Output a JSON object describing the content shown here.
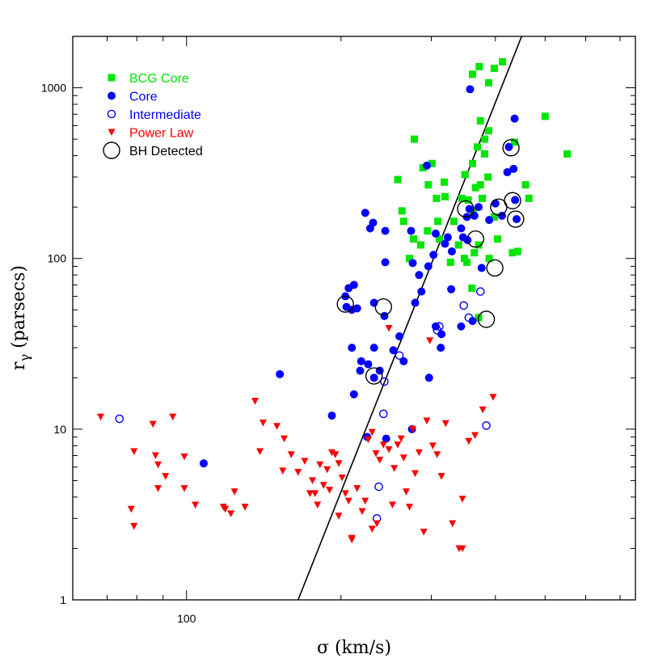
{
  "chart_data": {
    "type": "scatter",
    "x_scale": "log",
    "y_scale": "log",
    "xlim": [
      60,
      750
    ],
    "ylim": [
      1,
      2000
    ],
    "xlabel": "σ (km/s)",
    "ylabel": "r_γ (parsecs)",
    "x_ticks": [
      {
        "value": 100,
        "label": "100"
      }
    ],
    "y_ticks": [
      {
        "value": 1,
        "label": "1"
      },
      {
        "value": 10,
        "label": "10"
      },
      {
        "value": 100,
        "label": "100"
      },
      {
        "value": 1000,
        "label": "1000"
      }
    ],
    "legend_position": "top-left",
    "fit_line": {
      "x": [
        165,
        450
      ],
      "y": [
        1,
        2000
      ],
      "color": "#000000"
    },
    "series": [
      {
        "name": "BCG Core",
        "marker": "square",
        "color": "#00e600",
        "points": [
          [
            372,
            1330
          ],
          [
            413,
            1420
          ],
          [
            398,
            1300
          ],
          [
            388,
            1070
          ],
          [
            361,
            1200
          ],
          [
            436,
            480
          ],
          [
            387,
            300
          ],
          [
            374,
            270
          ],
          [
            404,
            130
          ],
          [
            442,
            110
          ],
          [
            432,
            108
          ],
          [
            458,
            270
          ],
          [
            465,
            225
          ],
          [
            500,
            680
          ],
          [
            552,
            410
          ],
          [
            362,
            190
          ],
          [
            377,
            225
          ],
          [
            369,
            450
          ],
          [
            381,
            410
          ],
          [
            361,
            360
          ],
          [
            349,
            310
          ],
          [
            354,
            220
          ],
          [
            344,
            225
          ],
          [
            366,
            260
          ],
          [
            364,
            108
          ],
          [
            348,
            100
          ],
          [
            352,
            95
          ],
          [
            332,
            165
          ],
          [
            339,
            120
          ],
          [
            301,
            360
          ],
          [
            296,
            270
          ],
          [
            318,
            280
          ],
          [
            319,
            230
          ],
          [
            289,
            340
          ],
          [
            278,
            500
          ],
          [
            307,
            225
          ],
          [
            265,
            165
          ],
          [
            258,
            290
          ],
          [
            263,
            190
          ],
          [
            309,
            165
          ],
          [
            311,
            130
          ],
          [
            295,
            145
          ],
          [
            286,
            120
          ],
          [
            272,
            100
          ],
          [
            277,
            130
          ],
          [
            371,
            120
          ],
          [
            398,
            175
          ],
          [
            388,
            560
          ],
          [
            374,
            640
          ],
          [
            381,
            500
          ],
          [
            389,
            100
          ],
          [
            371,
            45
          ],
          [
            360,
            67
          ],
          [
            327,
            95
          ]
        ]
      },
      {
        "name": "Core",
        "marker": "filled-circle",
        "color": "#0000ff",
        "points": [
          [
            357,
            980
          ],
          [
            436,
            660
          ],
          [
            294,
            350
          ],
          [
            306,
            140
          ],
          [
            319,
            122
          ],
          [
            323,
            133
          ],
          [
            329,
            110
          ],
          [
            343,
            150
          ],
          [
            346,
            133
          ],
          [
            356,
            195
          ],
          [
            352,
            175
          ],
          [
            364,
            178
          ],
          [
            371,
            200
          ],
          [
            389,
            168
          ],
          [
            425,
            450
          ],
          [
            434,
            335
          ],
          [
            437,
            220
          ],
          [
            440,
            170
          ],
          [
            400,
            210
          ],
          [
            422,
            320
          ],
          [
            412,
            178
          ],
          [
            353,
            128
          ],
          [
            376,
            88
          ],
          [
            361,
            43
          ],
          [
            328,
            66
          ],
          [
            343,
            40
          ],
          [
            303,
            105
          ],
          [
            274,
            145
          ],
          [
            276,
            94
          ],
          [
            284,
            80
          ],
          [
            296,
            90
          ],
          [
            287,
            64
          ],
          [
            279,
            55
          ],
          [
            244,
            95
          ],
          [
            231,
            162
          ],
          [
            223,
            185
          ],
          [
            228,
            150
          ],
          [
            244,
            145
          ],
          [
            212,
            70
          ],
          [
            210,
            50
          ],
          [
            205,
            52
          ],
          [
            204,
            60
          ],
          [
            215,
            51
          ],
          [
            232,
            55
          ],
          [
            207,
            67
          ],
          [
            210,
            30
          ],
          [
            219,
            25
          ],
          [
            226,
            24
          ],
          [
            232,
            30
          ],
          [
            218,
            22
          ],
          [
            238,
            22
          ],
          [
            243,
            46
          ],
          [
            253,
            29
          ],
          [
            260,
            35
          ],
          [
            265,
            25
          ],
          [
            275,
            10
          ],
          [
            297,
            20
          ],
          [
            313,
            30
          ],
          [
            306,
            40
          ],
          [
            314,
            36
          ],
          [
            192,
            12
          ],
          [
            212,
            16
          ],
          [
            232,
            20
          ],
          [
            245,
            8.8
          ],
          [
            225,
            9
          ],
          [
            108,
            6.3
          ],
          [
            152,
            21
          ]
        ]
      },
      {
        "name": "Intermediate",
        "marker": "open-circle",
        "color": "#0000ff",
        "points": [
          [
            74,
            11.5
          ],
          [
            235,
            3.0
          ],
          [
            237,
            4.6
          ],
          [
            242,
            12.3
          ],
          [
            243,
            19
          ],
          [
            260,
            27
          ],
          [
            308,
            38
          ],
          [
            311,
            40
          ],
          [
            347,
            53
          ],
          [
            355,
            45
          ],
          [
            374,
            64
          ],
          [
            384,
            10.5
          ]
        ]
      },
      {
        "name": "Power Law",
        "marker": "triangle-down",
        "color": "#ff0000",
        "points": [
          [
            68,
            11.8
          ],
          [
            78,
            3.4
          ],
          [
            79,
            2.7
          ],
          [
            79,
            7.4
          ],
          [
            86,
            10.7
          ],
          [
            87,
            7.0
          ],
          [
            88,
            6.2
          ],
          [
            88,
            4.5
          ],
          [
            91,
            5.3
          ],
          [
            94,
            11.8
          ],
          [
            99,
            6.9
          ],
          [
            99,
            4.5
          ],
          [
            104,
            3.6
          ],
          [
            118,
            3.5
          ],
          [
            119,
            3.4
          ],
          [
            122,
            3.2
          ],
          [
            124,
            4.3
          ],
          [
            130,
            3.5
          ],
          [
            136,
            14.6
          ],
          [
            139,
            7.4
          ],
          [
            141,
            10.9
          ],
          [
            150,
            10.4
          ],
          [
            154,
            5.7
          ],
          [
            155,
            8.8
          ],
          [
            160,
            7.1
          ],
          [
            165,
            5.6
          ],
          [
            170,
            6.5
          ],
          [
            174,
            4.2
          ],
          [
            176,
            5.0
          ],
          [
            178,
            4.2
          ],
          [
            180,
            3.6
          ],
          [
            182,
            6.2
          ],
          [
            185,
            4.7
          ],
          [
            188,
            5.8
          ],
          [
            190,
            4.4
          ],
          [
            192,
            7.3
          ],
          [
            195,
            7.1
          ],
          [
            198,
            6.3
          ],
          [
            201,
            5.2
          ],
          [
            204,
            4.2
          ],
          [
            207,
            3.8
          ],
          [
            210,
            2.3
          ],
          [
            215,
            4.5
          ],
          [
            220,
            3.3
          ],
          [
            223,
            3.8
          ],
          [
            226,
            8.7
          ],
          [
            230,
            9.6
          ],
          [
            234,
            7.2
          ],
          [
            238,
            6.6
          ],
          [
            242,
            8.1
          ],
          [
            248,
            7.6
          ],
          [
            252,
            3.6
          ],
          [
            254,
            5.9
          ],
          [
            258,
            8.1
          ],
          [
            262,
            8.8
          ],
          [
            265,
            6.8
          ],
          [
            268,
            4.3
          ],
          [
            272,
            3.5
          ],
          [
            276,
            10.0
          ],
          [
            279,
            5.5
          ],
          [
            284,
            7.3
          ],
          [
            290,
            2.5
          ],
          [
            294,
            11.2
          ],
          [
            302,
            8.0
          ],
          [
            308,
            7.1
          ],
          [
            314,
            5.3
          ],
          [
            320,
            10.8
          ],
          [
            330,
            2.8
          ],
          [
            340,
            2.0
          ],
          [
            345,
            3.9
          ],
          [
            355,
            8.5
          ],
          [
            365,
            9.2
          ],
          [
            378,
            13.0
          ],
          [
            396,
            15.4
          ],
          [
            248,
            39
          ],
          [
            298,
            33
          ],
          [
            235,
            2.8
          ],
          [
            210,
            2.25
          ],
          [
            230,
            2.6
          ],
          [
            345,
            2.0
          ],
          [
            198,
            3.1
          ]
        ]
      },
      {
        "name": "BH Detected",
        "marker": "large-open-circle",
        "color": "#000000",
        "points": [
          [
            204,
            54
          ],
          [
            242,
            52
          ],
          [
            232,
            20.5
          ],
          [
            350,
            195
          ],
          [
            366,
            130
          ],
          [
            384,
            44
          ],
          [
            399,
            88
          ],
          [
            406,
            200
          ],
          [
            429,
            445
          ],
          [
            432,
            218
          ],
          [
            438,
            170
          ]
        ]
      }
    ]
  }
}
